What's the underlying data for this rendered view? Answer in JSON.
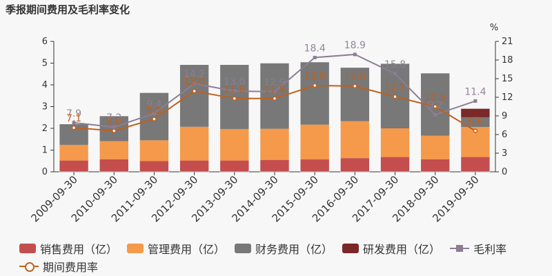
{
  "title": "季报期间费用及毛利率变化",
  "chart_data": {
    "type": "bar",
    "stacked": true,
    "categories": [
      "2009-09-30",
      "2010-09-30",
      "2011-09-30",
      "2012-09-30",
      "2013-09-30",
      "2014-09-30",
      "2015-09-30",
      "2016-09-30",
      "2017-09-30",
      "2018-09-30",
      "2019-09-30"
    ],
    "series": [
      {
        "name": "销售费用（亿）",
        "color": "#c44e4e",
        "values": [
          0.52,
          0.58,
          0.5,
          0.52,
          0.52,
          0.55,
          0.57,
          0.63,
          0.68,
          0.58,
          0.68
        ]
      },
      {
        "name": "管理费用（亿）",
        "color": "#f5994a",
        "values": [
          0.72,
          0.83,
          0.95,
          1.55,
          1.45,
          1.43,
          1.6,
          1.7,
          1.32,
          1.08,
          1.38
        ]
      },
      {
        "name": "财务费用（亿）",
        "color": "#787878",
        "values": [
          0.96,
          1.16,
          2.19,
          2.86,
          2.96,
          3.02,
          2.88,
          2.47,
          2.98,
          2.88,
          0.45
        ]
      },
      {
        "name": "研发费用（亿）",
        "color": "#7b2828",
        "values": [
          0,
          0,
          0,
          0,
          0,
          0,
          0,
          0,
          0,
          0,
          0.4
        ]
      }
    ],
    "lines": [
      {
        "name": "毛利率",
        "color": "#8d7d93",
        "marker": "square",
        "values": [
          7.9,
          7.2,
          9.4,
          14.2,
          13.0,
          12.9,
          18.4,
          18.9,
          15.8,
          9.2,
          11.4
        ],
        "labels": [
          "7.9",
          "7.2",
          "9.4",
          "14.2",
          "13.0",
          "12.9",
          "18.4",
          "18.9",
          "15.8",
          "9.2",
          "11.4"
        ]
      },
      {
        "name": "期间费用率",
        "color": "#c0601c",
        "marker": "circle",
        "values": [
          7.1,
          6.6,
          8.5,
          13.0,
          11.8,
          11.8,
          13.9,
          13.8,
          12.1,
          10.5,
          6.6
        ],
        "labels": [
          "7.1",
          "6.6",
          "8.5",
          "13.0",
          "11.8",
          "11.8",
          "13.9",
          "13.8",
          "12.1",
          "10.5",
          "6.6"
        ]
      }
    ],
    "y_left": {
      "min": 0,
      "max": 6,
      "ticks": [
        "0",
        "1",
        "2",
        "3",
        "4",
        "5",
        "6"
      ]
    },
    "y_right": {
      "min": 0,
      "max": 21,
      "ticks": [
        "0",
        "3",
        "6",
        "9",
        "12",
        "15",
        "18",
        "21"
      ],
      "unit": "%"
    },
    "legend_position": "bottom"
  },
  "colors": {
    "axis": "#333333",
    "tick_text": "#333333",
    "bg": "#f7f7f7"
  }
}
